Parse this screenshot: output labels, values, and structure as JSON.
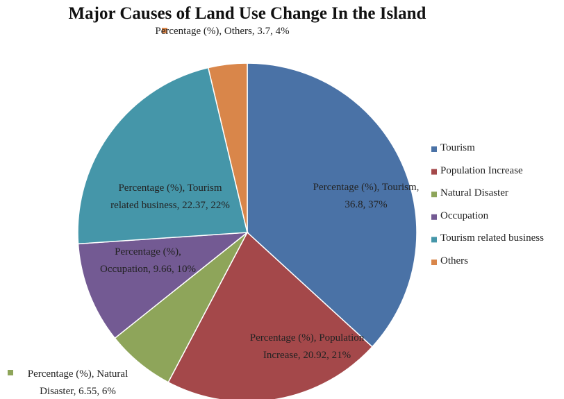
{
  "chart_data": {
    "type": "pie",
    "title": "Major Causes of Land Use Change In the Island",
    "categories": [
      "Tourism",
      "Population Increase",
      "Natural Disaster",
      "Occupation",
      "Tourism related business",
      "Others"
    ],
    "values": [
      36.8,
      20.92,
      6.55,
      9.66,
      22.37,
      3.7
    ],
    "value_labels": [
      "Percentage (%), Tourism, 36.8, 37%",
      "Percentage (%), Population Increase, 20.92, 21%",
      "Percentage (%), Natural Disaster, 6.55, 6%",
      "Percentage (%), Occupation, 9.66, 10%",
      "Percentage (%), Tourism related business, 22.37, 22%",
      "Percentage (%), Others, 3.7, 4%"
    ],
    "colors": [
      "#4a72a6",
      "#a4484a",
      "#8ea55a",
      "#735a93",
      "#4596a9",
      "#d9864a"
    ],
    "legend": "right"
  }
}
